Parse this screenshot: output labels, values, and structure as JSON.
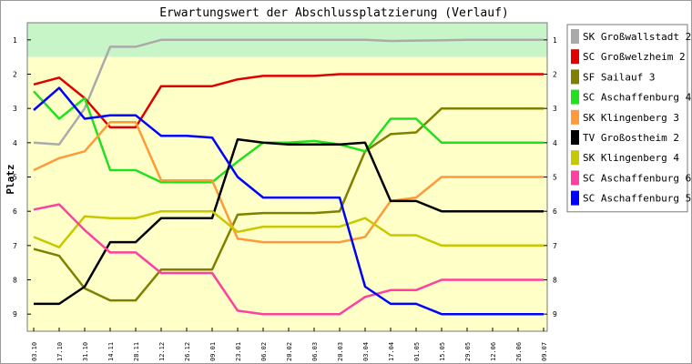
{
  "chart_data": {
    "type": "line",
    "title": "Erwartungswert der Abschlussplatzierung (Verlauf)",
    "ylabel": "Platz",
    "ylim": [
      0.5,
      9.5
    ],
    "y_inverted": true,
    "yticks": [
      "1",
      "2",
      "3",
      "4",
      "5",
      "6",
      "7",
      "8",
      "9"
    ],
    "x": [
      "03.10",
      "17.10",
      "31.10",
      "14.11",
      "28.11",
      "12.12",
      "26.12",
      "09.01",
      "23.01",
      "06.02",
      "20.02",
      "06.03",
      "20.03",
      "03.04",
      "17.04",
      "01.05",
      "15.05",
      "29.05",
      "12.06",
      "26.06",
      "09.07"
    ],
    "bands": [
      {
        "from": 0.5,
        "to": 1.5,
        "color": "#c8f5c8"
      },
      {
        "from": 1.5,
        "to": 9.5,
        "color": "#ffffc8"
      }
    ],
    "grid": false,
    "legend_position": "right",
    "series": [
      {
        "name": "SK Großwallstadt 2",
        "color": "#aaaaaa",
        "values": [
          4.0,
          4.05,
          3.0,
          1.2,
          1.2,
          1.0,
          1.0,
          1.0,
          1.0,
          1.0,
          1.0,
          1.0,
          1.0,
          1.0,
          1.03,
          1.02,
          1.01,
          1.0,
          1.0,
          1.0,
          1.0
        ]
      },
      {
        "name": "SC Großwelzheim 2",
        "color": "#e00000",
        "values": [
          2.3,
          2.1,
          2.7,
          3.55,
          3.55,
          2.35,
          2.35,
          2.35,
          2.15,
          2.05,
          2.05,
          2.05,
          2.0,
          2.0,
          2.0,
          2.0,
          2.0,
          2.0,
          2.0,
          2.0,
          2.0
        ]
      },
      {
        "name": "SF Sailauf 3",
        "color": "#808000",
        "values": [
          7.1,
          7.3,
          8.25,
          8.6,
          8.6,
          7.7,
          7.7,
          7.7,
          6.1,
          6.05,
          6.05,
          6.05,
          6.0,
          4.25,
          3.75,
          3.7,
          3.0,
          3.0,
          3.0,
          3.0,
          3.0
        ]
      },
      {
        "name": "SC Aschaffenburg 4",
        "color": "#20e020",
        "values": [
          2.5,
          3.3,
          2.7,
          4.8,
          4.8,
          5.15,
          5.15,
          5.15,
          4.55,
          4.0,
          4.0,
          3.95,
          4.05,
          4.25,
          3.3,
          3.3,
          4.0,
          4.0,
          4.0,
          4.0,
          4.0
        ]
      },
      {
        "name": "SK Klingenberg 3",
        "color": "#ff9a3a",
        "values": [
          4.8,
          4.45,
          4.25,
          3.4,
          3.4,
          5.1,
          5.1,
          5.1,
          6.8,
          6.9,
          6.9,
          6.9,
          6.9,
          6.75,
          5.7,
          5.6,
          5.0,
          5.0,
          5.0,
          5.0,
          5.0
        ]
      },
      {
        "name": "TV Großostheim 2",
        "color": "#000000",
        "values": [
          8.7,
          8.7,
          8.2,
          6.9,
          6.9,
          6.2,
          6.2,
          6.2,
          3.9,
          4.0,
          4.05,
          4.05,
          4.05,
          4.0,
          5.7,
          5.7,
          6.0,
          6.0,
          6.0,
          6.0,
          6.0
        ]
      },
      {
        "name": "SK Klingenberg 4",
        "color": "#c8c800",
        "values": [
          6.75,
          7.05,
          6.15,
          6.2,
          6.2,
          6.0,
          6.0,
          6.0,
          6.6,
          6.45,
          6.45,
          6.45,
          6.45,
          6.2,
          6.7,
          6.7,
          7.0,
          7.0,
          7.0,
          7.0,
          7.0
        ]
      },
      {
        "name": "SC Aschaffenburg 6",
        "color": "#ff40a0",
        "values": [
          5.95,
          5.8,
          6.55,
          7.2,
          7.2,
          7.8,
          7.8,
          7.8,
          8.9,
          9.0,
          9.0,
          9.0,
          9.0,
          8.5,
          8.3,
          8.3,
          8.0,
          8.0,
          8.0,
          8.0,
          8.0
        ]
      },
      {
        "name": "SC Aschaffenburg 5",
        "color": "#0000ff",
        "values": [
          3.05,
          2.4,
          3.3,
          3.2,
          3.2,
          3.8,
          3.8,
          3.85,
          5.0,
          5.6,
          5.6,
          5.6,
          5.6,
          8.2,
          8.7,
          8.7,
          9.0,
          9.0,
          9.0,
          9.0,
          9.0
        ]
      }
    ]
  }
}
